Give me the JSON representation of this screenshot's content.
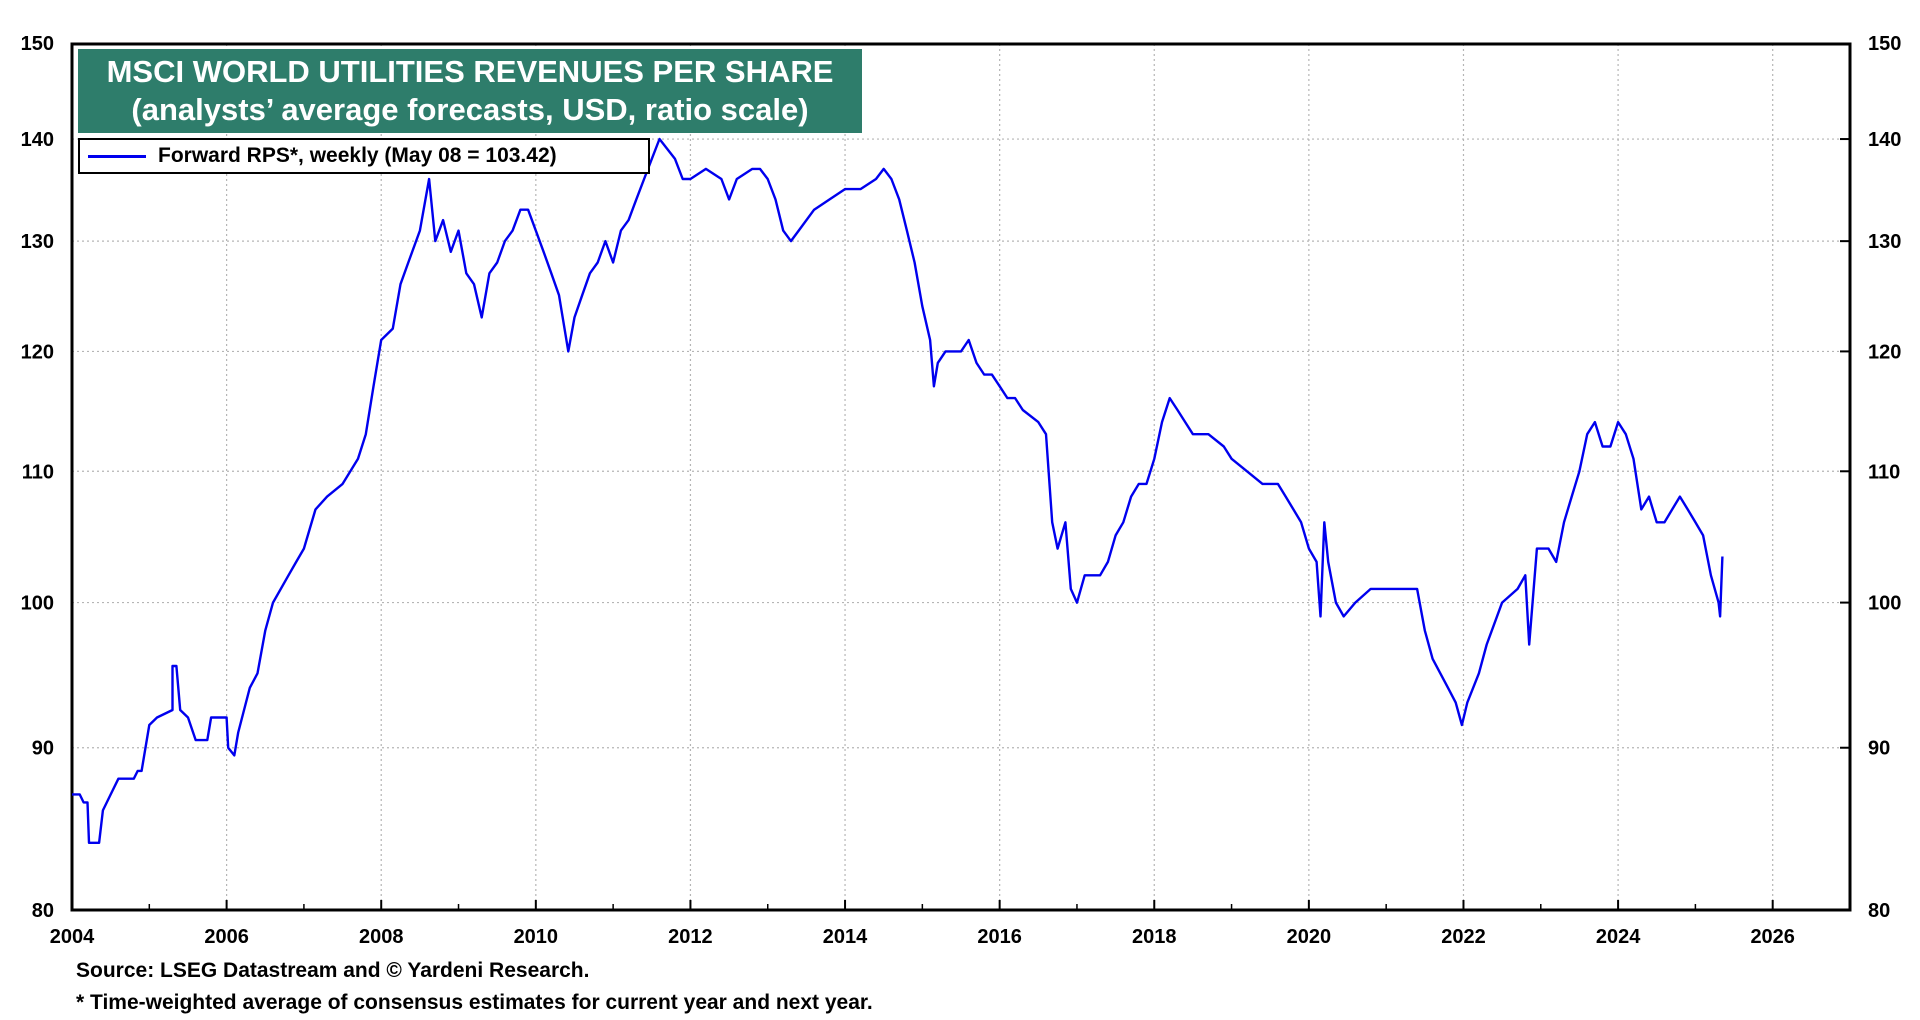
{
  "chart_data": {
    "type": "line",
    "title": "MSCI WORLD UTILITIES REVENUES PER SHARE",
    "subtitle": "(analysts’ average forecasts, USD, ratio scale)",
    "y_scale": "log",
    "ylim": [
      80,
      150
    ],
    "xlim": [
      2004,
      2027
    ],
    "y_ticks": [
      "80",
      "90",
      "100",
      "110",
      "120",
      "130",
      "140",
      "150"
    ],
    "x_ticks": [
      "2004",
      "2006",
      "2008",
      "2010",
      "2012",
      "2014",
      "2016",
      "2018",
      "2020",
      "2022",
      "2024",
      "2026"
    ],
    "grid": true,
    "legend_position": "top-left",
    "series": [
      {
        "name": "Forward RPS*, weekly (May 08 = 103.42)",
        "color": "#0000ee",
        "points": [
          [
            2004.0,
            87
          ],
          [
            2004.1,
            87
          ],
          [
            2004.15,
            86.5
          ],
          [
            2004.2,
            86.5
          ],
          [
            2004.22,
            84
          ],
          [
            2004.35,
            84
          ],
          [
            2004.4,
            86
          ],
          [
            2004.5,
            87
          ],
          [
            2004.6,
            88
          ],
          [
            2004.8,
            88
          ],
          [
            2004.85,
            88.5
          ],
          [
            2004.9,
            88.5
          ],
          [
            2005.0,
            91.5
          ],
          [
            2005.1,
            92
          ],
          [
            2005.3,
            92.5
          ],
          [
            2005.3,
            95.5
          ],
          [
            2005.35,
            95.5
          ],
          [
            2005.4,
            92.5
          ],
          [
            2005.5,
            92
          ],
          [
            2005.6,
            90.5
          ],
          [
            2005.75,
            90.5
          ],
          [
            2005.8,
            92
          ],
          [
            2006.0,
            92
          ],
          [
            2006.02,
            90
          ],
          [
            2006.1,
            89.5
          ],
          [
            2006.15,
            91
          ],
          [
            2006.3,
            94
          ],
          [
            2006.4,
            95
          ],
          [
            2006.5,
            98
          ],
          [
            2006.6,
            100
          ],
          [
            2006.8,
            102
          ],
          [
            2006.9,
            103
          ],
          [
            2007.0,
            104
          ],
          [
            2007.15,
            107
          ],
          [
            2007.3,
            108
          ],
          [
            2007.5,
            109
          ],
          [
            2007.7,
            111
          ],
          [
            2007.8,
            113
          ],
          [
            2007.9,
            117
          ],
          [
            2008.0,
            121
          ],
          [
            2008.15,
            122
          ],
          [
            2008.25,
            126
          ],
          [
            2008.35,
            128
          ],
          [
            2008.5,
            131
          ],
          [
            2008.62,
            136
          ],
          [
            2008.7,
            130
          ],
          [
            2008.8,
            132
          ],
          [
            2008.9,
            129
          ],
          [
            2009.0,
            131
          ],
          [
            2009.1,
            127
          ],
          [
            2009.2,
            126
          ],
          [
            2009.3,
            123
          ],
          [
            2009.4,
            127
          ],
          [
            2009.5,
            128
          ],
          [
            2009.6,
            130
          ],
          [
            2009.7,
            131
          ],
          [
            2009.8,
            133
          ],
          [
            2009.9,
            133
          ],
          [
            2010.0,
            131
          ],
          [
            2010.1,
            129
          ],
          [
            2010.2,
            127
          ],
          [
            2010.3,
            125
          ],
          [
            2010.42,
            120
          ],
          [
            2010.5,
            123
          ],
          [
            2010.6,
            125
          ],
          [
            2010.7,
            127
          ],
          [
            2010.8,
            128
          ],
          [
            2010.9,
            130
          ],
          [
            2011.0,
            128
          ],
          [
            2011.1,
            131
          ],
          [
            2011.2,
            132
          ],
          [
            2011.3,
            134
          ],
          [
            2011.4,
            136
          ],
          [
            2011.5,
            138
          ],
          [
            2011.6,
            140
          ],
          [
            2011.7,
            139
          ],
          [
            2011.8,
            138
          ],
          [
            2011.9,
            136
          ],
          [
            2012.0,
            136
          ],
          [
            2012.2,
            137
          ],
          [
            2012.4,
            136
          ],
          [
            2012.5,
            134
          ],
          [
            2012.6,
            136
          ],
          [
            2012.8,
            137
          ],
          [
            2012.9,
            137
          ],
          [
            2013.0,
            136
          ],
          [
            2013.1,
            134
          ],
          [
            2013.2,
            131
          ],
          [
            2013.3,
            130
          ],
          [
            2013.4,
            131
          ],
          [
            2013.6,
            133
          ],
          [
            2013.8,
            134
          ],
          [
            2014.0,
            135
          ],
          [
            2014.2,
            135
          ],
          [
            2014.4,
            136
          ],
          [
            2014.5,
            137
          ],
          [
            2014.6,
            136
          ],
          [
            2014.7,
            134
          ],
          [
            2014.8,
            131
          ],
          [
            2014.9,
            128
          ],
          [
            2015.0,
            124
          ],
          [
            2015.1,
            121
          ],
          [
            2015.15,
            117
          ],
          [
            2015.2,
            119
          ],
          [
            2015.3,
            120
          ],
          [
            2015.5,
            120
          ],
          [
            2015.6,
            121
          ],
          [
            2015.7,
            119
          ],
          [
            2015.8,
            118
          ],
          [
            2015.9,
            118
          ],
          [
            2016.0,
            117
          ],
          [
            2016.1,
            116
          ],
          [
            2016.2,
            116
          ],
          [
            2016.3,
            115
          ],
          [
            2016.5,
            114
          ],
          [
            2016.6,
            113
          ],
          [
            2016.68,
            106
          ],
          [
            2016.75,
            104
          ],
          [
            2016.85,
            106
          ],
          [
            2016.92,
            101
          ],
          [
            2017.0,
            100
          ],
          [
            2017.1,
            102
          ],
          [
            2017.2,
            102
          ],
          [
            2017.3,
            102
          ],
          [
            2017.4,
            103
          ],
          [
            2017.5,
            105
          ],
          [
            2017.6,
            106
          ],
          [
            2017.7,
            108
          ],
          [
            2017.8,
            109
          ],
          [
            2017.9,
            109
          ],
          [
            2018.0,
            111
          ],
          [
            2018.1,
            114
          ],
          [
            2018.2,
            116
          ],
          [
            2018.3,
            115
          ],
          [
            2018.4,
            114
          ],
          [
            2018.5,
            113
          ],
          [
            2018.7,
            113
          ],
          [
            2018.9,
            112
          ],
          [
            2019.0,
            111
          ],
          [
            2019.2,
            110
          ],
          [
            2019.4,
            109
          ],
          [
            2019.6,
            109
          ],
          [
            2019.7,
            108
          ],
          [
            2019.8,
            107
          ],
          [
            2019.9,
            106
          ],
          [
            2020.0,
            104
          ],
          [
            2020.1,
            103
          ],
          [
            2020.15,
            99
          ],
          [
            2020.2,
            106
          ],
          [
            2020.25,
            103
          ],
          [
            2020.35,
            100
          ],
          [
            2020.45,
            99
          ],
          [
            2020.6,
            100
          ],
          [
            2020.8,
            101
          ],
          [
            2021.0,
            101
          ],
          [
            2021.2,
            101
          ],
          [
            2021.4,
            101
          ],
          [
            2021.5,
            98
          ],
          [
            2021.6,
            96
          ],
          [
            2021.7,
            95
          ],
          [
            2021.8,
            94
          ],
          [
            2021.9,
            93
          ],
          [
            2021.98,
            91.5
          ],
          [
            2022.05,
            93
          ],
          [
            2022.2,
            95
          ],
          [
            2022.3,
            97
          ],
          [
            2022.5,
            100
          ],
          [
            2022.7,
            101
          ],
          [
            2022.8,
            102
          ],
          [
            2022.85,
            97
          ],
          [
            2022.95,
            104
          ],
          [
            2023.1,
            104
          ],
          [
            2023.2,
            103
          ],
          [
            2023.3,
            106
          ],
          [
            2023.4,
            108
          ],
          [
            2023.5,
            110
          ],
          [
            2023.6,
            113
          ],
          [
            2023.7,
            114
          ],
          [
            2023.8,
            112
          ],
          [
            2023.9,
            112
          ],
          [
            2024.0,
            114
          ],
          [
            2024.1,
            113
          ],
          [
            2024.2,
            111
          ],
          [
            2024.3,
            107
          ],
          [
            2024.4,
            108
          ],
          [
            2024.5,
            106
          ],
          [
            2024.6,
            106
          ],
          [
            2024.7,
            107
          ],
          [
            2024.8,
            108
          ],
          [
            2024.9,
            107
          ],
          [
            2025.0,
            106
          ],
          [
            2025.1,
            105
          ],
          [
            2025.2,
            102
          ],
          [
            2025.3,
            100
          ],
          [
            2025.32,
            99
          ],
          [
            2025.35,
            103.4
          ]
        ]
      }
    ]
  },
  "footnotes": {
    "source": "Source: LSEG Datastream and © Yardeni Research.",
    "note": "* Time-weighted average of consensus estimates for current year and next year."
  }
}
